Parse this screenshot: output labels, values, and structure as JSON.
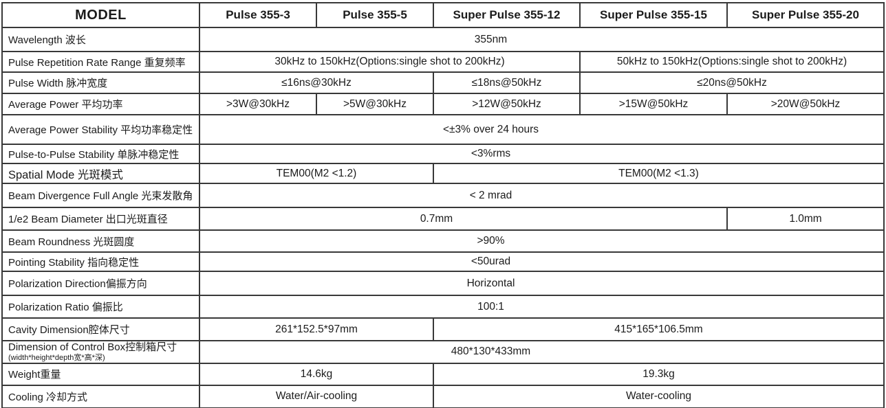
{
  "header": {
    "model": "MODEL",
    "columns": [
      "Pulse 355-3",
      "Pulse 355-5",
      "Super Pulse 355-12",
      "Super Pulse 355-15",
      "Super Pulse 355-20"
    ]
  },
  "rows": [
    {
      "label": "Wavelength 波长",
      "cells": [
        {
          "text": "355nm",
          "span": 5
        }
      ]
    },
    {
      "label": "Pulse Repetition Rate Range 重复频率",
      "cells": [
        {
          "text": "30kHz to 150kHz(Options:single shot to 200kHz)",
          "span": 3
        },
        {
          "text": "50kHz to 150kHz(Options:single shot to 200kHz)",
          "span": 2
        }
      ]
    },
    {
      "label": "Pulse Width 脉冲宽度",
      "cells": [
        {
          "text": "≤16ns@30kHz",
          "span": 2
        },
        {
          "text": "≤18ns@50kHz",
          "span": 1
        },
        {
          "text": "≤20ns@50kHz",
          "span": 2
        }
      ]
    },
    {
      "label": "Average Power 平均功率",
      "cells": [
        {
          "text": ">3W@30kHz",
          "span": 1
        },
        {
          "text": ">5W@30kHz",
          "span": 1
        },
        {
          "text": ">12W@50kHz",
          "span": 1
        },
        {
          "text": ">15W@50kHz",
          "span": 1
        },
        {
          "text": ">20W@50kHz",
          "span": 1
        }
      ]
    },
    {
      "label": "Average Power Stability 平均功率稳定性",
      "cells": [
        {
          "text": "<±3% over 24 hours",
          "span": 5
        }
      ]
    },
    {
      "label": "Pulse-to-Pulse Stability 单脉冲稳定性",
      "cells": [
        {
          "text": "<3%rms",
          "span": 5
        }
      ]
    },
    {
      "label": "Spatial Mode 光斑模式",
      "cells": [
        {
          "text": "TEM00(M2 <1.2)",
          "span": 2
        },
        {
          "text": "TEM00(M2 <1.3)",
          "span": 3
        }
      ]
    },
    {
      "label": "Beam Divergence Full Angle 光束发散角",
      "cells": [
        {
          "text": "< 2 mrad",
          "span": 5
        }
      ]
    },
    {
      "label": "1/e2 Beam Diameter 出口光斑直径",
      "cells": [
        {
          "text": "0.7mm",
          "span": 4
        },
        {
          "text": "1.0mm",
          "span": 1
        }
      ]
    },
    {
      "label": "Beam Roundness 光斑圆度",
      "cells": [
        {
          "text": ">90%",
          "span": 5
        }
      ]
    },
    {
      "label": "Pointing Stability 指向稳定性",
      "cells": [
        {
          "text": "<50urad",
          "span": 5
        }
      ]
    },
    {
      "label": "Polarization Direction偏振方向",
      "cells": [
        {
          "text": "Horizontal",
          "span": 5
        }
      ]
    },
    {
      "label": "Polarization Ratio 偏振比",
      "cells": [
        {
          "text": "100:1",
          "span": 5
        }
      ]
    },
    {
      "label": "Cavity Dimension腔体尺寸",
      "cells": [
        {
          "text": "261*152.5*97mm",
          "span": 2
        },
        {
          "text": "415*165*106.5mm",
          "span": 3
        }
      ]
    },
    {
      "label": "Dimension of Control Box控制箱尺寸",
      "sublabel": "(width*height*depth宽*高*深)",
      "cells": [
        {
          "text": "480*130*433mm",
          "span": 5
        }
      ]
    },
    {
      "label": "Weight重量",
      "cells": [
        {
          "text": "14.6kg",
          "span": 2
        },
        {
          "text": "19.3kg",
          "span": 3
        }
      ]
    },
    {
      "label": "Cooling 冷却方式",
      "cells": [
        {
          "text": "Water/Air-cooling",
          "span": 2
        },
        {
          "text": "Water-cooling",
          "span": 3
        }
      ]
    }
  ]
}
